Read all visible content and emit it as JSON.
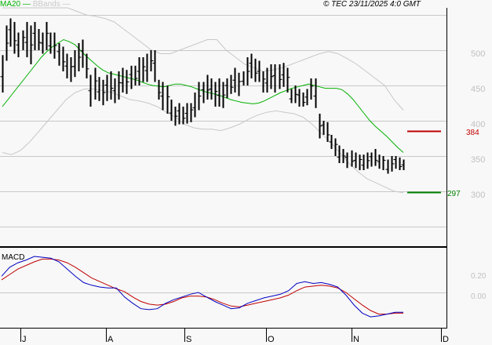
{
  "header": {
    "legend_ma": "MA20",
    "legend_bb": "BBands",
    "copyright": "© TEC 23/11/2025 4:0 GMT"
  },
  "colors": {
    "ma20": "#00b000",
    "bbands": "#c8c8c8",
    "price_bars": "#000000",
    "macd": "#0000c0",
    "signal": "#c00000",
    "resistance": "#c00000",
    "support": "#008000",
    "grid": "#c8c8c8",
    "axis_text": "#c0c0c0"
  },
  "levels": {
    "resistance": {
      "value": 384,
      "label": "384"
    },
    "support": {
      "value": 297,
      "label": "297"
    }
  },
  "macd_panel": {
    "label": "MACD",
    "ticks": [
      "0.20",
      "0.00"
    ]
  },
  "price_axis": {
    "ticks": [
      "500",
      "450",
      "400",
      "350",
      "300"
    ]
  },
  "months": [
    "J",
    "A",
    "S",
    "O",
    "N",
    "D"
  ],
  "chart_data": [
    {
      "type": "ohlc",
      "title": "Price with MA20 and Bollinger Bands",
      "xlabel": "",
      "ylabel": "",
      "ylim": [
        235,
        560
      ],
      "grid": true,
      "legend_position": "top-left",
      "x_ticks": [
        "J",
        "A",
        "S",
        "O",
        "N",
        "D"
      ],
      "y_ticks": [
        300,
        350,
        400,
        450,
        500
      ],
      "bars": [
        [
          440,
          493
        ],
        [
          485,
          535
        ],
        [
          505,
          545
        ],
        [
          495,
          540
        ],
        [
          490,
          525
        ],
        [
          500,
          528
        ],
        [
          490,
          540
        ],
        [
          480,
          535
        ],
        [
          500,
          540
        ],
        [
          500,
          530
        ],
        [
          495,
          525
        ],
        [
          500,
          540
        ],
        [
          495,
          525
        ],
        [
          488,
          525
        ],
        [
          478,
          510
        ],
        [
          470,
          505
        ],
        [
          460,
          495
        ],
        [
          455,
          490
        ],
        [
          462,
          500
        ],
        [
          470,
          510
        ],
        [
          475,
          515
        ],
        [
          460,
          495
        ],
        [
          420,
          465
        ],
        [
          430,
          475
        ],
        [
          428,
          462
        ],
        [
          422,
          458
        ],
        [
          428,
          465
        ],
        [
          430,
          470
        ],
        [
          425,
          460
        ],
        [
          430,
          470
        ],
        [
          440,
          475
        ],
        [
          438,
          472
        ],
        [
          445,
          478
        ],
        [
          450,
          478
        ],
        [
          450,
          490
        ],
        [
          455,
          490
        ],
        [
          455,
          495
        ],
        [
          470,
          500
        ],
        [
          455,
          500
        ],
        [
          430,
          458
        ],
        [
          415,
          455
        ],
        [
          410,
          450
        ],
        [
          400,
          430
        ],
        [
          393,
          420
        ],
        [
          395,
          425
        ],
        [
          395,
          420
        ],
        [
          396,
          425
        ],
        [
          398,
          425
        ],
        [
          405,
          440
        ],
        [
          415,
          455
        ],
        [
          425,
          455
        ],
        [
          430,
          465
        ],
        [
          430,
          460
        ],
        [
          420,
          455
        ],
        [
          420,
          460
        ],
        [
          418,
          455
        ],
        [
          432,
          460
        ],
        [
          438,
          465
        ],
        [
          440,
          475
        ],
        [
          435,
          468
        ],
        [
          450,
          470
        ],
        [
          450,
          490
        ],
        [
          460,
          495
        ],
        [
          455,
          488
        ],
        [
          455,
          485
        ],
        [
          440,
          470
        ],
        [
          440,
          475
        ],
        [
          445,
          480
        ],
        [
          440,
          480
        ],
        [
          445,
          480
        ],
        [
          448,
          482
        ],
        [
          440,
          475
        ],
        [
          425,
          445
        ],
        [
          425,
          450
        ],
        [
          420,
          445
        ],
        [
          420,
          440
        ],
        [
          422,
          445
        ],
        [
          430,
          460
        ],
        [
          418,
          460
        ],
        [
          375,
          410
        ],
        [
          380,
          400
        ],
        [
          370,
          398
        ],
        [
          360,
          380
        ],
        [
          350,
          375
        ],
        [
          340,
          365
        ],
        [
          340,
          360
        ],
        [
          333,
          355
        ],
        [
          335,
          358
        ],
        [
          333,
          355
        ],
        [
          330,
          352
        ],
        [
          330,
          352
        ],
        [
          332,
          355
        ],
        [
          335,
          355
        ],
        [
          336,
          360
        ],
        [
          332,
          352
        ],
        [
          330,
          350
        ],
        [
          325,
          345
        ],
        [
          328,
          350
        ],
        [
          332,
          350
        ],
        [
          330,
          348
        ],
        [
          330,
          345
        ]
      ],
      "ma20": [
        420,
        430,
        440,
        450,
        460,
        470,
        480,
        490,
        498,
        505,
        510,
        515,
        512,
        508,
        500,
        492,
        485,
        478,
        472,
        468,
        466,
        464,
        462,
        460,
        458,
        455,
        452,
        450,
        449,
        448,
        450,
        452,
        452,
        450,
        448,
        445,
        442,
        440,
        438,
        436,
        433,
        430,
        428,
        426,
        425,
        424,
        425,
        428,
        432,
        436,
        440,
        443,
        446,
        448,
        450,
        452,
        450,
        448,
        446,
        446,
        446,
        444,
        438,
        430,
        420,
        410,
        400,
        392,
        385,
        378,
        370,
        362,
        355
      ],
      "bb_upper": [
        560,
        560,
        560,
        560,
        560,
        560,
        560,
        560,
        555,
        550,
        548,
        545,
        540,
        530,
        520,
        510,
        500,
        495,
        495,
        500,
        505,
        510,
        515,
        515,
        500,
        490,
        480,
        475,
        470,
        472,
        475,
        480,
        485,
        490,
        495,
        498,
        495,
        488,
        480,
        470,
        460,
        450,
        430,
        415
      ],
      "bb_lower": [
        355,
        352,
        358,
        370,
        385,
        400,
        415,
        430,
        440,
        445,
        445,
        443,
        440,
        435,
        430,
        428,
        425,
        420,
        412,
        405,
        395,
        390,
        388,
        388,
        386,
        390,
        395,
        402,
        408,
        412,
        414,
        412,
        410,
        405,
        395,
        382,
        370,
        355,
        340,
        328,
        318,
        312,
        306,
        300,
        298
      ],
      "series": [
        {
          "name": "Resistance",
          "values": [
            384
          ]
        },
        {
          "name": "Support",
          "values": [
            297
          ]
        }
      ]
    },
    {
      "type": "line",
      "title": "MACD",
      "ylim": [
        -0.4,
        0.4
      ],
      "y_ticks": [
        0.0,
        0.2
      ],
      "series": [
        {
          "name": "MACD",
          "values": [
            0.18,
            0.28,
            0.33,
            0.36,
            0.4,
            0.39,
            0.38,
            0.34,
            0.26,
            0.18,
            0.11,
            0.08,
            0.06,
            0.05,
            0.05,
            -0.05,
            -0.12,
            -0.18,
            -0.19,
            -0.18,
            -0.12,
            -0.08,
            -0.05,
            -0.02,
            0.0,
            -0.05,
            -0.1,
            -0.14,
            -0.18,
            -0.17,
            -0.12,
            -0.09,
            -0.06,
            -0.04,
            -0.02,
            0.02,
            0.1,
            0.12,
            0.1,
            0.11,
            0.09,
            0.06,
            -0.03,
            -0.14,
            -0.23,
            -0.27,
            -0.26,
            -0.24,
            -0.22,
            -0.22
          ]
        },
        {
          "name": "Signal",
          "values": [
            0.14,
            0.2,
            0.26,
            0.3,
            0.34,
            0.37,
            0.37,
            0.36,
            0.33,
            0.28,
            0.22,
            0.16,
            0.12,
            0.08,
            0.04,
            0.01,
            -0.05,
            -0.1,
            -0.13,
            -0.14,
            -0.13,
            -0.1,
            -0.06,
            -0.04,
            -0.04,
            -0.05,
            -0.08,
            -0.12,
            -0.15,
            -0.16,
            -0.14,
            -0.12,
            -0.1,
            -0.08,
            -0.06,
            -0.03,
            0.02,
            0.06,
            0.07,
            0.08,
            0.07,
            0.05,
            0.0,
            -0.07,
            -0.14,
            -0.2,
            -0.24,
            -0.24,
            -0.23,
            -0.23
          ]
        }
      ]
    }
  ]
}
